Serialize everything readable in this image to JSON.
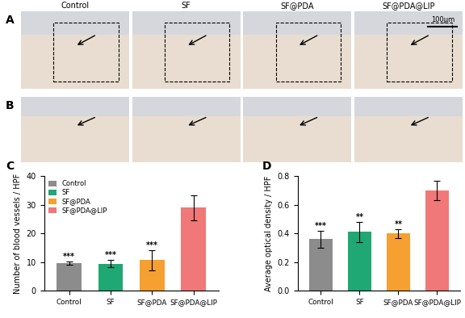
{
  "image_panels": [
    {
      "label": "A"
    },
    {
      "label": "B"
    }
  ],
  "columns": [
    "Control",
    "SF",
    "SF@PDA",
    "SF@PDA@LIP"
  ],
  "scale_bar": "100μm",
  "chart_data": [
    {
      "type": "bar",
      "label": "C",
      "y_label": "Number of blood vessels / HPF",
      "categories": [
        "Control",
        "SF",
        "SF@PDA",
        "SF@PDA@LIP"
      ],
      "values": [
        9.7,
        9.4,
        10.7,
        29.0
      ],
      "errors": [
        0.6,
        1.3,
        3.5,
        4.3
      ],
      "significance": [
        "***",
        "***",
        "***",
        null
      ],
      "colors": [
        "#8c8c8c",
        "#1fa774",
        "#f5a030",
        "#f07878"
      ],
      "ylim": [
        0,
        40
      ],
      "yticks": [
        0,
        10,
        20,
        30,
        40
      ],
      "legend": "upper left"
    },
    {
      "type": "bar",
      "label": "D",
      "y_label": "Average optical density / HPF",
      "categories": [
        "Control",
        "SF",
        "SF@PDA",
        "SF@PDA@LIP"
      ],
      "values": [
        0.36,
        0.41,
        0.4,
        0.7
      ],
      "errors": [
        0.06,
        0.07,
        0.03,
        0.07
      ],
      "significance": [
        "***",
        "**",
        "**",
        null
      ],
      "colors": [
        "#8c8c8c",
        "#1fa774",
        "#f5a030",
        "#f07878"
      ],
      "ylim": [
        0,
        0.8
      ],
      "yticks": [
        {
          "value": 0,
          "label": "0.0"
        },
        0.2,
        0.4,
        0.6,
        0.8
      ]
    }
  ]
}
